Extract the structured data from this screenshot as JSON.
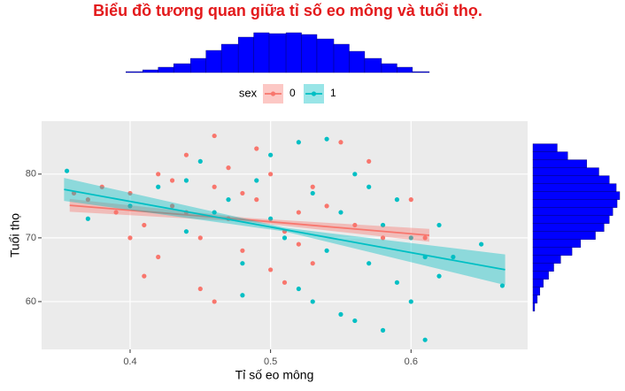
{
  "chart_data": [
    {
      "type": "scatter",
      "title": "Biểu đồ tương quan giữa tỉ số eo mông và tuổi thọ.",
      "x_label": "Tỉ số eo mông",
      "y_label": "Tuổi thọ",
      "legend_title": "sex",
      "xlim": [
        0.337,
        0.683
      ],
      "ylim": [
        52.5,
        88.3
      ],
      "xticks": [
        0.4,
        0.5,
        0.6
      ],
      "yticks": [
        60,
        70,
        80
      ],
      "grid": true,
      "series": [
        {
          "name": "0",
          "color": "#F8766D",
          "x": [
            0.37,
            0.38,
            0.39,
            0.4,
            0.41,
            0.42,
            0.43,
            0.44,
            0.45,
            0.46,
            0.46,
            0.47,
            0.48,
            0.49,
            0.5,
            0.51,
            0.52,
            0.53,
            0.55,
            0.56,
            0.58,
            0.6,
            0.61,
            0.45,
            0.41,
            0.43,
            0.47,
            0.5,
            0.53,
            0.57,
            0.4,
            0.44,
            0.48,
            0.52,
            0.36,
            0.42,
            0.49,
            0.54,
            0.46,
            0.51
          ],
          "y": [
            76,
            78,
            74,
            77,
            72,
            80,
            75,
            83,
            70,
            78,
            86,
            73,
            68,
            76,
            80,
            71,
            74,
            66,
            85,
            72,
            70,
            76,
            70,
            62,
            64,
            79,
            81,
            65,
            78,
            82,
            70,
            74,
            77,
            69,
            77,
            67,
            84,
            75,
            60,
            63
          ],
          "fit": {
            "x": [
              0.357,
              0.485,
              0.613
            ],
            "y": [
              75.1,
              72.8,
              70.4
            ],
            "lower": [
              74.1,
              72.5,
              69.4
            ],
            "upper": [
              76.1,
              73.1,
              71.4
            ]
          }
        },
        {
          "name": "1",
          "color": "#00BFC4",
          "x": [
            0.355,
            0.37,
            0.4,
            0.42,
            0.44,
            0.45,
            0.47,
            0.48,
            0.49,
            0.5,
            0.51,
            0.52,
            0.52,
            0.53,
            0.54,
            0.55,
            0.55,
            0.56,
            0.57,
            0.58,
            0.59,
            0.6,
            0.61,
            0.62,
            0.63,
            0.65,
            0.665,
            0.58,
            0.61,
            0.57,
            0.53,
            0.5,
            0.46,
            0.54,
            0.59,
            0.62,
            0.48,
            0.56,
            0.6,
            0.44
          ],
          "y": [
            80.5,
            73,
            75,
            78,
            71,
            82,
            76,
            66,
            79,
            73,
            70,
            85,
            62,
            77,
            68,
            74,
            58,
            80,
            66,
            72,
            63,
            70,
            67,
            64,
            67,
            69,
            62.5,
            55.5,
            54,
            78,
            60,
            83,
            74,
            85.5,
            76,
            72,
            61,
            57,
            60,
            79
          ],
          "fit": {
            "x": [
              0.353,
              0.51,
              0.667
            ],
            "y": [
              77.6,
              71.3,
              65.0
            ],
            "lower": [
              75.8,
              71.0,
              62.6
            ],
            "upper": [
              79.4,
              71.6,
              67.4
            ]
          }
        }
      ]
    },
    {
      "type": "histogram",
      "orientation": "vertical",
      "color": "#0000FF",
      "bins": [
        0.397,
        0.409,
        0.42,
        0.431,
        0.443,
        0.454,
        0.465,
        0.477,
        0.488,
        0.499,
        0.511,
        0.522,
        0.533,
        0.545,
        0.556,
        0.567,
        0.579,
        0.59,
        0.601,
        0.613
      ],
      "counts": [
        1,
        3,
        6,
        10,
        16,
        25,
        32,
        40,
        45,
        44,
        45,
        43,
        38,
        32,
        24,
        16,
        10,
        6,
        1
      ]
    },
    {
      "type": "histogram",
      "orientation": "horizontal",
      "color": "#0000FF",
      "bins": [
        58.5,
        59.75,
        61,
        62.25,
        63.5,
        64.75,
        66,
        67.25,
        68.5,
        69.75,
        71,
        72.25,
        73.5,
        74.75,
        76,
        77.25,
        78.5,
        79.75,
        81,
        82.25,
        83.5,
        84.75
      ],
      "counts": [
        2,
        5,
        8,
        12,
        18,
        24,
        32,
        45,
        55,
        72,
        82,
        88,
        92,
        97,
        100,
        96,
        88,
        76,
        62,
        40,
        28
      ]
    }
  ]
}
